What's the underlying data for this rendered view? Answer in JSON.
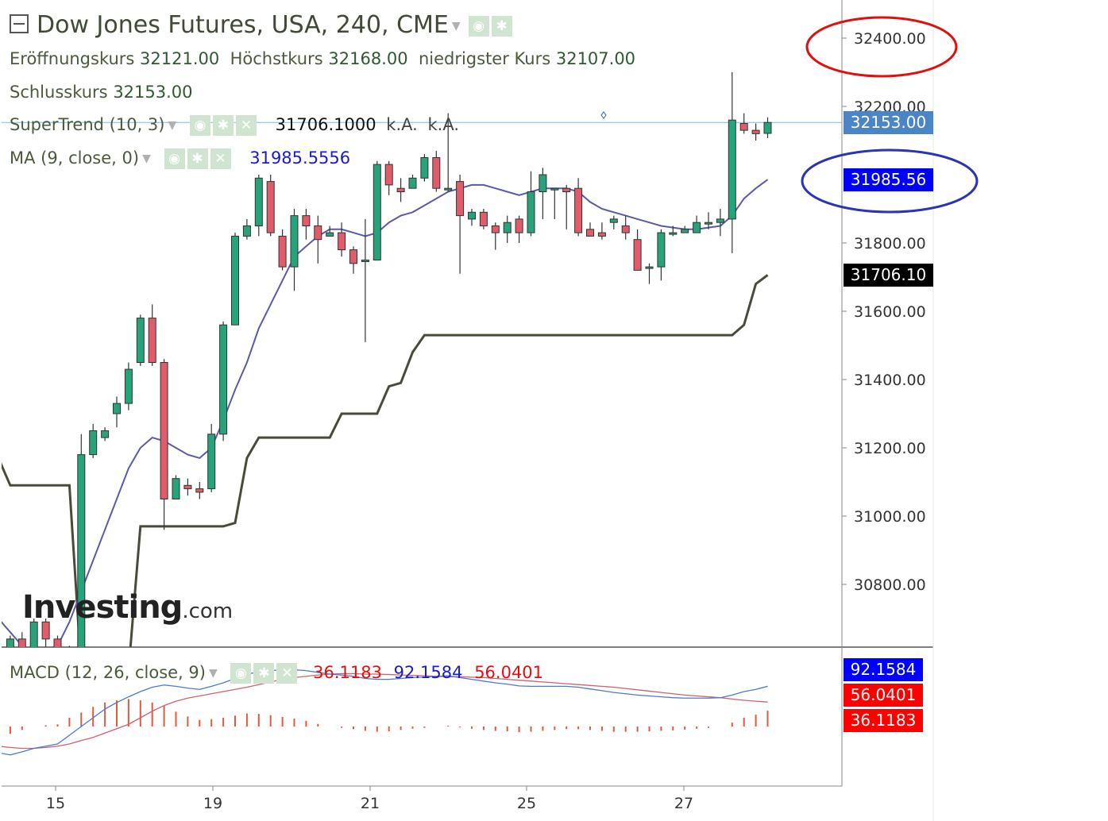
{
  "header": {
    "title": "Dow Jones Futures, USA, 240, CME",
    "ohlc": [
      {
        "label": "Eröffnungskurs",
        "value": "32121.00"
      },
      {
        "label": "Höchstkurs",
        "value": "32168.00"
      },
      {
        "label": "niedrigster Kurs",
        "value": "32107.00"
      }
    ],
    "close_label": "Schlusskurs",
    "close_value": "32153.00"
  },
  "indicators": {
    "supertrend": {
      "label": "SuperTrend (10, 3)",
      "value": "31706.1000",
      "na1": "k.A.",
      "na2": "k.A.",
      "color": "#4a4a3a"
    },
    "ma": {
      "label": "MA (9, close, 0)",
      "value": "31985.5556",
      "color": "#5a5aaa"
    },
    "macd": {
      "label": "MACD (12, 26, close, 9)",
      "hist": "36.1183",
      "macd": "92.1584",
      "signal": "56.0401"
    }
  },
  "icons": {
    "eye": "eye-icon",
    "gear": "gear-icon",
    "close": "close-icon",
    "collapse": "collapse-icon"
  },
  "watermark": {
    "brand": "Investing",
    "suffix": ".com"
  },
  "colors": {
    "up": "#26a37a",
    "down": "#e05c6a",
    "tag_price": "#4a86c5",
    "tag_ma": "#0000ff",
    "tag_st": "#000000",
    "tag_macd": "#0000ff",
    "tag_signal": "#ff0000",
    "tag_hist": "#ff0000",
    "annot_red": "#e01010",
    "annot_blue": "#2a35b5"
  },
  "chart_data": {
    "type": "candlestick",
    "y_ticks": [
      "32400.00",
      "32200.00",
      "31800.00",
      "31600.00",
      "31400.00",
      "31200.00",
      "31000.00",
      "30800.00"
    ],
    "x_ticks": [
      "15",
      "19",
      "21",
      "25",
      "27"
    ],
    "last_price_label": "32153.00",
    "ma_label": "31985.56",
    "supertrend_label": "31706.10",
    "macd_labels": {
      "macd": "92.1584",
      "signal": "56.0401",
      "hist": "36.1183"
    },
    "ylim": [
      30600,
      32450
    ],
    "candles": [
      [
        30580,
        30560,
        30610,
        30540
      ],
      [
        30560,
        30640,
        30650,
        30500
      ],
      [
        30640,
        30600,
        30660,
        30560
      ],
      [
        30600,
        30690,
        30700,
        30580
      ],
      [
        30690,
        30640,
        30700,
        30600
      ],
      [
        30640,
        30570,
        30650,
        30500
      ],
      [
        30560,
        30580,
        30620,
        30520
      ],
      [
        30580,
        31180,
        31240,
        30570
      ],
      [
        31180,
        31250,
        31270,
        31170
      ],
      [
        31230,
        31250,
        31260,
        31220
      ],
      [
        31300,
        31330,
        31350,
        31260
      ],
      [
        31330,
        31430,
        31450,
        31310
      ],
      [
        31450,
        31580,
        31590,
        31440
      ],
      [
        31580,
        31450,
        31620,
        31440
      ],
      [
        31450,
        31050,
        31460,
        30960
      ],
      [
        31050,
        31110,
        31120,
        31050
      ],
      [
        31090,
        31080,
        31110,
        31060
      ],
      [
        31080,
        31070,
        31100,
        31050
      ],
      [
        31080,
        31240,
        31270,
        31070
      ],
      [
        31240,
        31560,
        31570,
        31220
      ],
      [
        31560,
        31820,
        31830,
        31560
      ],
      [
        31820,
        31850,
        31870,
        31810
      ],
      [
        31850,
        31990,
        32000,
        31820
      ],
      [
        31980,
        31830,
        32000,
        31820
      ],
      [
        31820,
        31730,
        31840,
        31720
      ],
      [
        31730,
        31880,
        31900,
        31660
      ],
      [
        31880,
        31850,
        31900,
        31810
      ],
      [
        31850,
        31810,
        31880,
        31740
      ],
      [
        31820,
        31830,
        31850,
        31820
      ],
      [
        31830,
        31780,
        31860,
        31760
      ],
      [
        31780,
        31740,
        31790,
        31710
      ],
      [
        31750,
        31750,
        31870,
        31510
      ],
      [
        31750,
        32030,
        32040,
        31750
      ],
      [
        32030,
        31970,
        32040,
        31940
      ],
      [
        31960,
        31950,
        31990,
        31920
      ],
      [
        31960,
        31990,
        32000,
        31960
      ],
      [
        31990,
        32050,
        32060,
        31980
      ],
      [
        32050,
        31960,
        32070,
        31950
      ],
      [
        31960,
        31960,
        32180,
        31950
      ],
      [
        31980,
        31880,
        32000,
        31710
      ],
      [
        31870,
        31890,
        31900,
        31850
      ],
      [
        31890,
        31850,
        31900,
        31840
      ],
      [
        31850,
        31830,
        31860,
        31780
      ],
      [
        31830,
        31860,
        31880,
        31800
      ],
      [
        31870,
        31830,
        31880,
        31800
      ],
      [
        31830,
        31950,
        32010,
        31820
      ],
      [
        31950,
        32000,
        32020,
        31870
      ],
      [
        31960,
        31960,
        31960,
        31870
      ],
      [
        31960,
        31950,
        31970,
        31840
      ],
      [
        31960,
        31830,
        31990,
        31820
      ],
      [
        31840,
        31820,
        31860,
        31820
      ],
      [
        31830,
        31820,
        31860,
        31810
      ],
      [
        31860,
        31870,
        31880,
        31840
      ],
      [
        31850,
        31830,
        31880,
        31810
      ],
      [
        31810,
        31720,
        31840,
        31740
      ],
      [
        31730,
        31730,
        31740,
        31680
      ],
      [
        31730,
        31830,
        31840,
        31690
      ],
      [
        31830,
        31830,
        31850,
        31820
      ],
      [
        31830,
        31840,
        31850,
        31830
      ],
      [
        31830,
        31860,
        31880,
        31830
      ],
      [
        31860,
        31860,
        31890,
        31840
      ],
      [
        31860,
        31870,
        31900,
        31820
      ],
      [
        31870,
        32160,
        32300,
        31770
      ],
      [
        32150,
        32130,
        32180,
        32120
      ],
      [
        32130,
        32120,
        32150,
        32100
      ],
      [
        32121,
        32153,
        32168,
        32107
      ]
    ],
    "ma_series": [
      30700,
      30660,
      30620,
      30600,
      30610,
      30620,
      30690,
      30780,
      30870,
      30960,
      31050,
      31140,
      31200,
      31230,
      31220,
      31200,
      31180,
      31170,
      31200,
      31280,
      31370,
      31450,
      31550,
      31620,
      31690,
      31760,
      31790,
      31820,
      31840,
      31840,
      31830,
      31820,
      31830,
      31860,
      31880,
      31890,
      31910,
      31930,
      31950,
      31960,
      31970,
      31970,
      31960,
      31950,
      31940,
      31950,
      31960,
      31960,
      31960,
      31950,
      31920,
      31900,
      31890,
      31880,
      31870,
      31860,
      31850,
      31845,
      31840,
      31840,
      31845,
      31850,
      31880,
      31930,
      31960,
      31985.56
    ],
    "supertrend_series": [
      31170,
      31090,
      31090,
      31090,
      31090,
      31090,
      31090,
      30550,
      30550,
      30550,
      30550,
      30550,
      30970,
      30970,
      30970,
      30970,
      30970,
      30970,
      30970,
      30970,
      30980,
      31170,
      31230,
      31230,
      31230,
      31230,
      31230,
      31230,
      31230,
      31300,
      31300,
      31300,
      31300,
      31380,
      31390,
      31480,
      31530,
      31530,
      31530,
      31530,
      31530,
      31530,
      31530,
      31530,
      31530,
      31530,
      31530,
      31530,
      31530,
      31530,
      31530,
      31530,
      31530,
      31530,
      31530,
      31530,
      31530,
      31530,
      31530,
      31530,
      31530,
      31530,
      31530,
      31560,
      31680,
      31706.1
    ],
    "macd_series": [
      -60,
      -65,
      -58,
      -50,
      -45,
      -40,
      -20,
      0,
      20,
      40,
      55,
      68,
      80,
      90,
      95,
      92,
      88,
      85,
      92,
      100,
      110,
      120,
      125,
      128,
      130,
      130,
      128,
      124,
      120,
      118,
      115,
      110,
      108,
      108,
      110,
      112,
      113,
      115,
      116,
      112,
      108,
      104,
      100,
      97,
      93,
      92,
      92,
      92,
      92,
      90,
      86,
      82,
      78,
      75,
      72,
      70,
      68,
      66,
      65,
      65,
      65,
      66,
      72,
      80,
      85,
      92.16
    ],
    "signal_series": [
      -45,
      -48,
      -50,
      -50,
      -48,
      -45,
      -40,
      -32,
      -25,
      -15,
      -5,
      5,
      20,
      35,
      48,
      58,
      65,
      70,
      75,
      80,
      85,
      90,
      96,
      102,
      108,
      112,
      115,
      118,
      120,
      121,
      121,
      120,
      120,
      119,
      118,
      117,
      116,
      115,
      114,
      114,
      113,
      112,
      110,
      108,
      106,
      104,
      102,
      100,
      98,
      96,
      94,
      92,
      90,
      87,
      84,
      81,
      78,
      75,
      72,
      70,
      68,
      66,
      63,
      60,
      58,
      56.04
    ],
    "hist_series": [
      -15,
      -17,
      -8,
      0,
      3,
      5,
      20,
      32,
      45,
      55,
      60,
      63,
      60,
      55,
      47,
      34,
      23,
      15,
      17,
      20,
      25,
      30,
      29,
      26,
      22,
      18,
      13,
      6,
      0,
      -3,
      -6,
      -10,
      -12,
      -11,
      -8,
      -5,
      -3,
      0,
      2,
      -2,
      -5,
      -8,
      -10,
      -11,
      -13,
      -12,
      -10,
      -8,
      -6,
      -6,
      -8,
      -10,
      -12,
      -12,
      -12,
      -11,
      -10,
      -9,
      -7,
      -5,
      -3,
      0,
      9,
      20,
      27,
      36.12
    ]
  }
}
